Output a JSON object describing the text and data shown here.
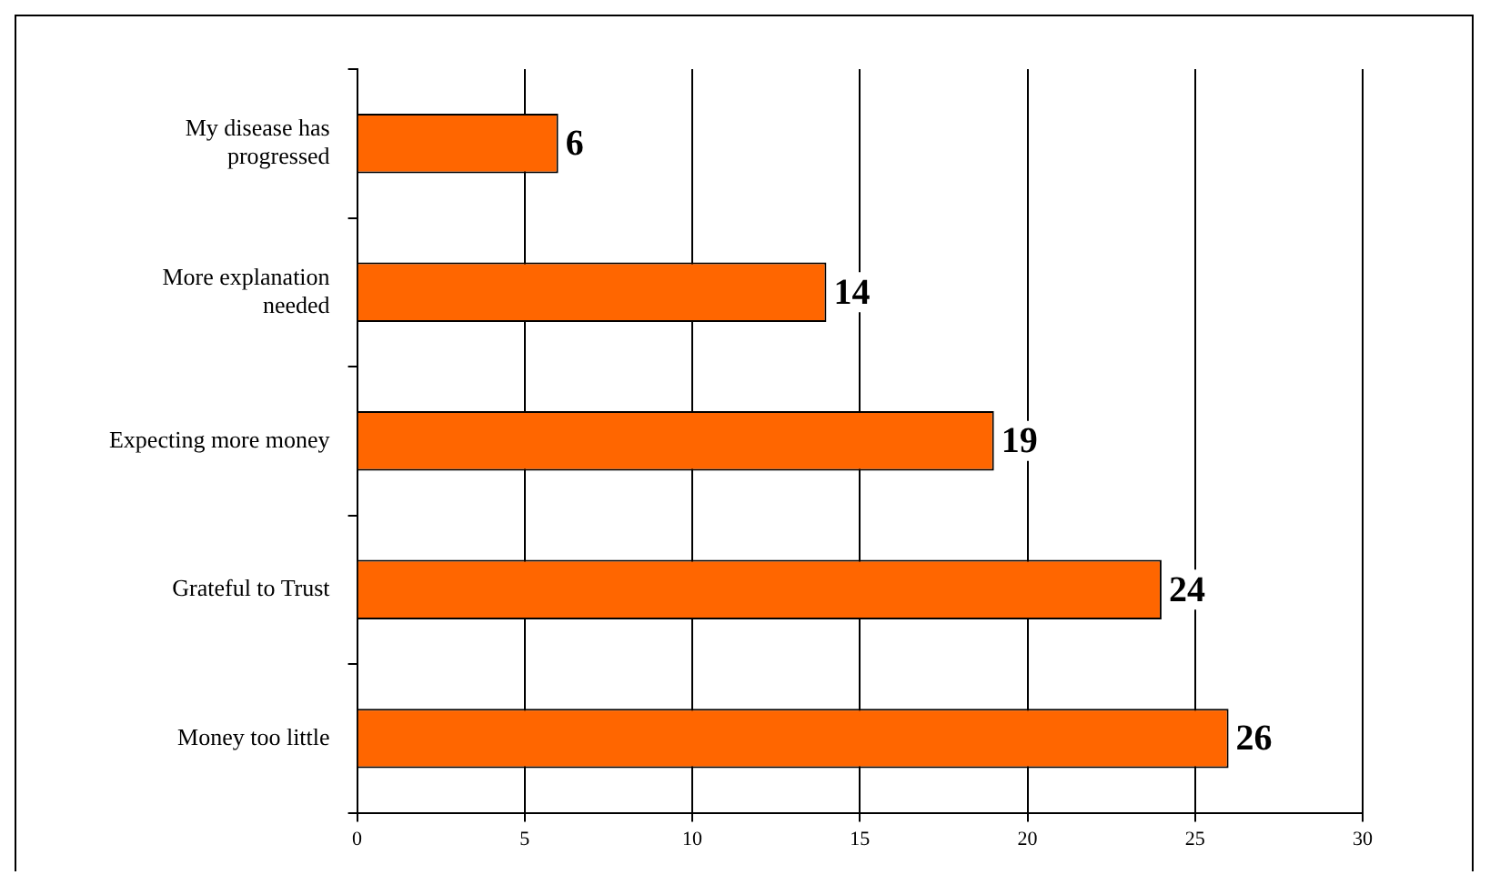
{
  "chart_data": {
    "type": "bar",
    "orientation": "horizontal",
    "categories": [
      "My disease has progressed",
      "More explanation needed",
      "Expecting more money",
      "Grateful to Trust",
      "Money too little"
    ],
    "values": [
      6,
      14,
      19,
      24,
      26
    ],
    "color": "#ff6600",
    "xlim": [
      0,
      30
    ],
    "xticks": [
      0,
      5,
      10,
      15,
      20,
      25,
      30
    ],
    "grid": "x",
    "data_labels": true,
    "legend": false
  }
}
